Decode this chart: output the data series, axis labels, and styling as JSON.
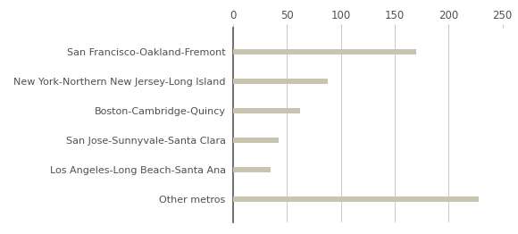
{
  "categories": [
    "Other metros",
    "Los Angeles-Long Beach-Santa Ana",
    "San Jose-Sunnyvale-Santa Clara",
    "Boston-Cambridge-Quincy",
    "New York-Northern New Jersey-Long Island",
    "San Francisco-Oakland-Fremont"
  ],
  "values": [
    228,
    35,
    42,
    62,
    88,
    170
  ],
  "bar_color": "#c8c4b0",
  "bar_height": 0.18,
  "xlim": [
    0,
    250
  ],
  "xticks": [
    0,
    50,
    100,
    150,
    200,
    250
  ],
  "background_color": "#ffffff",
  "label_fontsize": 8.0,
  "tick_fontsize": 8.5,
  "label_color": "#505050",
  "grid_color": "#c8c8c8",
  "left_spine_color": "#555555",
  "top_spine_color": "#cccccc"
}
